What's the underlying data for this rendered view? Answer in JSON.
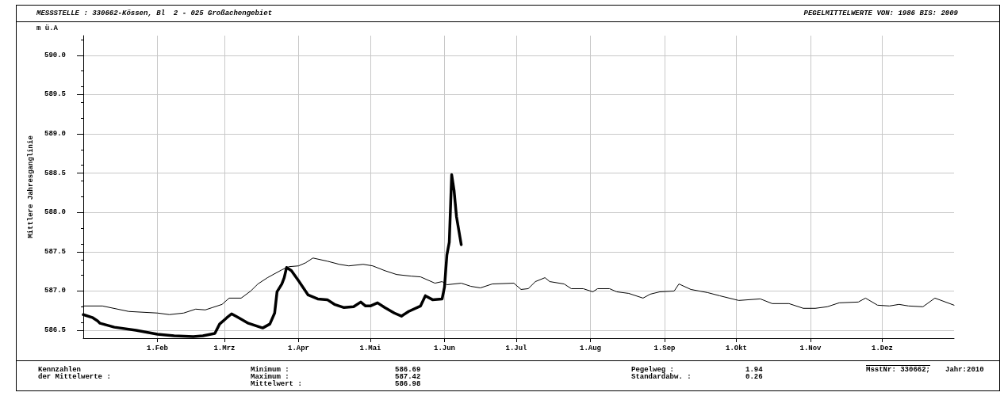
{
  "chart_data": {
    "type": "line",
    "title": "MESSSTELLE : 330662-Kössen, Bl  2 - 025 Großachengebiet",
    "subtitle": "PEGELMITTELWERTE VON: 1986 BIS: 2009",
    "ylabel": "Mittlere Jahresganglinie",
    "annotations": [
      "m ü.A",
      "Kennzahlen",
      "der Mittelwerte :",
      "Minimum :",
      "Maximum :",
      "Mittelwert :",
      "586.69",
      "587.42",
      "586.98",
      "Pegelweg :",
      "Standardabw. :",
      "1.94",
      "0.26",
      "MsstNr: 330662;",
      "Jahr:2010"
    ],
    "xlim": [
      "--01-01",
      "--12-31"
    ],
    "xticks": [
      {
        "value": "--02-01",
        "label": "1.Feb"
      },
      {
        "value": "--03-01",
        "label": "1.Mrz"
      },
      {
        "value": "--04-01",
        "label": "1.Apr"
      },
      {
        "value": "--05-01",
        "label": "1.Mai"
      },
      {
        "value": "--06-01",
        "label": "1.Jun"
      },
      {
        "value": "--07-01",
        "label": "1.Jul"
      },
      {
        "value": "--08-01",
        "label": "1.Aug"
      },
      {
        "value": "--09-01",
        "label": "1.Sep"
      },
      {
        "value": "--10-01",
        "label": "1.Okt"
      },
      {
        "value": "--11-01",
        "label": "1.Nov"
      },
      {
        "value": "--12-01",
        "label": "1.Dez"
      }
    ],
    "ylim": [
      586.4,
      590.25
    ],
    "yticks": [
      586.5,
      {
        "value": 587,
        "label": "587.0"
      },
      587.5,
      {
        "value": 588,
        "label": "588.0"
      },
      588.5,
      {
        "value": 589,
        "label": "589.0"
      },
      589.5,
      {
        "value": 590,
        "label": "590.0"
      }
    ],
    "grid": true,
    "marker": "none",
    "line_style": "solid",
    "series": [
      {
        "color": "#000000",
        "x": [
          "--01-01",
          "--01-09",
          "--01-20",
          "--02-01",
          "--02-06",
          "--02-12",
          "--02-17",
          "--02-21",
          "--02-24",
          "--02-28",
          "--03-03",
          "--03-08",
          "--03-12",
          "--03-15",
          "--03-19",
          "--03-25",
          "--03-28",
          "--04-01",
          "--04-04",
          "--04-07",
          "--04-13",
          "--04-18",
          "--04-22",
          "--04-28",
          "--05-02",
          "--05-07",
          "--05-12",
          "--05-18",
          "--05-22",
          "--05-28",
          "--05-31",
          "--06-02",
          "--06-08",
          "--06-12",
          "--06-16",
          "--06-21",
          "--06-30",
          "--07-03",
          "--07-06",
          "--07-09",
          "--07-13",
          "--07-15",
          "--07-21",
          "--07-24",
          "--07-29",
          "--08-02",
          "--08-04",
          "--08-09",
          "--08-12",
          "--08-17",
          "--08-23",
          "--08-26",
          "--08-30",
          "--09-05",
          "--09-07",
          "--09-12",
          "--09-19",
          "--09-24",
          "--10-02",
          "--10-11",
          "--10-16",
          "--10-23",
          "--10-29",
          "--11-03",
          "--11-08",
          "--11-13",
          "--11-21",
          "--11-24",
          "--11-29",
          "--12-04",
          "--12-08",
          "--12-12",
          "--12-18",
          "--12-23",
          "--12-31"
        ],
        "values": [
          586.81,
          586.81,
          586.74,
          586.72,
          586.7,
          586.72,
          586.77,
          586.76,
          586.79,
          586.83,
          586.91,
          586.91,
          587.0,
          587.09,
          587.17,
          587.27,
          587.31,
          587.32,
          587.36,
          587.42,
          587.38,
          587.34,
          587.32,
          587.34,
          587.32,
          587.26,
          587.21,
          587.19,
          587.18,
          587.1,
          587.12,
          587.08,
          587.1,
          587.06,
          587.04,
          587.09,
          587.1,
          587.02,
          587.03,
          587.12,
          587.17,
          587.12,
          587.09,
          587.03,
          587.03,
          586.99,
          587.03,
          587.03,
          586.99,
          586.97,
          586.91,
          586.96,
          586.99,
          587.0,
          587.09,
          587.02,
          586.98,
          586.94,
          586.88,
          586.9,
          586.84,
          586.84,
          586.78,
          586.78,
          586.8,
          586.85,
          586.86,
          586.91,
          586.82,
          586.81,
          586.83,
          586.81,
          586.8,
          586.91,
          586.82
        ]
      },
      {
        "color": "#000000",
        "x": [
          "--01-01",
          "--01-05",
          "--01-07",
          "--01-08",
          "--01-14",
          "--01-23",
          "--02-01",
          "--02-08",
          "--02-16",
          "--02-20",
          "--02-25",
          "--02-27",
          "--03-02",
          "--03-04",
          "--03-07",
          "--03-11",
          "--03-17",
          "--03-20",
          "--03-22",
          "--03-23",
          "--03-25",
          "--03-26",
          "--03-27",
          "--03-29",
          "--04-01",
          "--04-05",
          "--04-09",
          "--04-13",
          "--04-16",
          "--04-20",
          "--04-24",
          "--04-27",
          "--04-29",
          "--05-01",
          "--05-04",
          "--05-07",
          "--05-11",
          "--05-14",
          "--05-17",
          "--05-22",
          "--05-24",
          "--05-27",
          "--05-31",
          "--06-01",
          "--06-02",
          "--06-03",
          "--06-04",
          "--06-05",
          "--06-06",
          "--06-08"
        ],
        "values": [
          586.7,
          586.66,
          586.62,
          586.59,
          586.54,
          586.5,
          586.45,
          586.43,
          586.42,
          586.43,
          586.46,
          586.58,
          586.66,
          586.71,
          586.66,
          586.59,
          586.53,
          586.58,
          586.72,
          586.99,
          587.09,
          587.17,
          587.3,
          587.26,
          587.13,
          586.95,
          586.9,
          586.89,
          586.83,
          586.79,
          586.8,
          586.86,
          586.81,
          586.81,
          586.85,
          586.79,
          586.72,
          586.68,
          586.74,
          586.81,
          586.94,
          586.89,
          586.9,
          587.05,
          587.46,
          587.62,
          588.48,
          588.28,
          587.95,
          587.59
        ]
      }
    ]
  }
}
